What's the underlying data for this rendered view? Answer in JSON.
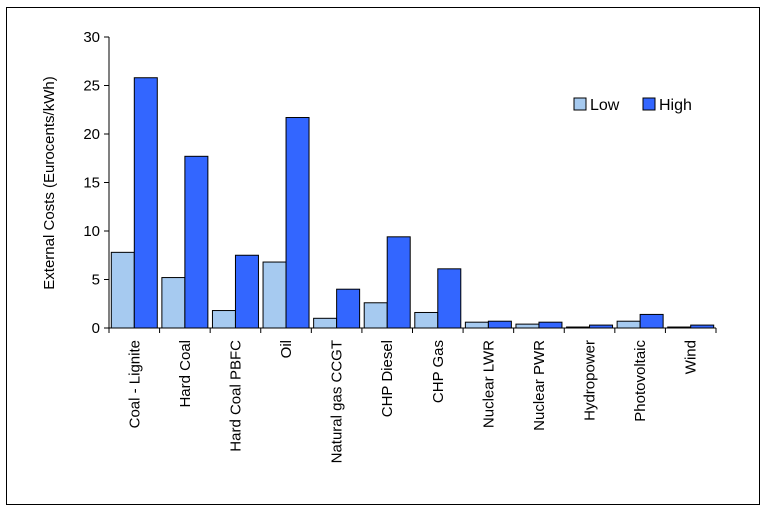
{
  "chart_data": {
    "type": "bar",
    "title": "",
    "xlabel": "",
    "ylabel": "External Costs (Eurocents/kWh)",
    "ylim": [
      0,
      30
    ],
    "yticks": [
      0,
      5,
      10,
      15,
      20,
      25,
      30
    ],
    "grid": false,
    "legend_position": "top-right",
    "categories": [
      "Coal - Lignite",
      "Hard Coal",
      "Hard Coal PBFC",
      "Oil",
      "Natural gas CCGT",
      "CHP Diesel",
      "CHP Gas",
      "Nuclear LWR",
      "Nuclear PWR",
      "Hydropower",
      "Photovoltaic",
      "Wind"
    ],
    "series": [
      {
        "name": "Low",
        "color": "#a6caf0",
        "values": [
          7.8,
          5.2,
          1.8,
          6.8,
          1.0,
          2.6,
          1.6,
          0.6,
          0.4,
          0.1,
          0.7,
          0.1
        ]
      },
      {
        "name": "High",
        "color": "#3366ff",
        "values": [
          25.8,
          17.7,
          7.5,
          21.7,
          4.0,
          9.4,
          6.1,
          0.7,
          0.6,
          0.3,
          1.4,
          0.3
        ]
      }
    ]
  }
}
